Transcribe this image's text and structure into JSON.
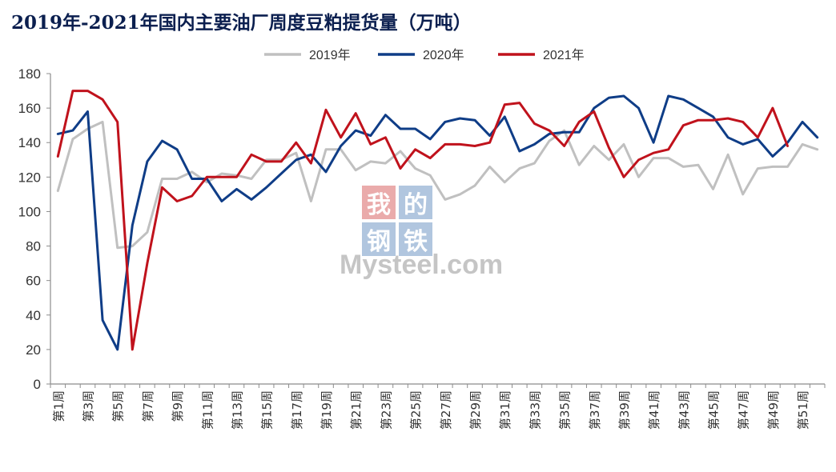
{
  "chart_data": {
    "type": "line",
    "title": "2019年-2021年国内主要油厂周度豆粕提货量（万吨）",
    "ylim": [
      0,
      180
    ],
    "yticks": [
      0,
      20,
      40,
      60,
      80,
      100,
      120,
      140,
      160,
      180
    ],
    "x_tick_labels": [
      "第1周",
      "第3周",
      "第5周",
      "第7周",
      "第9周",
      "第11周",
      "第13周",
      "第15周",
      "第17周",
      "第19周",
      "第21周",
      "第23周",
      "第25周",
      "第27周",
      "第29周",
      "第31周",
      "第33周",
      "第35周",
      "第37周",
      "第39周",
      "第41周",
      "第43周",
      "第45周",
      "第47周",
      "第49周",
      "第51周"
    ],
    "legend_position": "top-center",
    "grid": false,
    "series": [
      {
        "name": "2019年",
        "color": "#c0c0c0",
        "values": [
          112,
          142,
          148,
          152,
          79,
          80,
          88,
          119,
          119,
          123,
          117,
          122,
          121,
          119,
          130,
          130,
          134,
          106,
          136,
          136,
          124,
          129,
          128,
          135,
          125,
          121,
          107,
          110,
          115,
          126,
          117,
          125,
          128,
          141,
          147,
          127,
          138,
          130,
          139,
          120,
          131,
          131,
          126,
          127,
          113,
          133,
          110,
          125,
          126,
          126,
          139,
          136
        ]
      },
      {
        "name": "2020年",
        "color": "#0f3d87",
        "values": [
          145,
          147,
          158,
          37,
          20,
          92,
          129,
          141,
          136,
          119,
          119,
          106,
          113,
          107,
          114,
          122,
          130,
          133,
          123,
          138,
          147,
          144,
          156,
          148,
          148,
          142,
          152,
          154,
          153,
          144,
          155,
          135,
          139,
          145,
          146,
          146,
          160,
          166,
          167,
          160,
          140,
          167,
          165,
          160,
          155,
          143,
          139,
          142,
          132,
          140,
          152,
          143
        ]
      },
      {
        "name": "2021年",
        "color": "#c0121c",
        "values": [
          132,
          170,
          170,
          165,
          152,
          20,
          70,
          114,
          106,
          109,
          120,
          120,
          120,
          133,
          129,
          129,
          140,
          128,
          159,
          143,
          157,
          139,
          143,
          125,
          136,
          131,
          139,
          139,
          138,
          140,
          162,
          163,
          151,
          147,
          138,
          152,
          158,
          137,
          120,
          130,
          134,
          136,
          150,
          153,
          153,
          154,
          152,
          143,
          160,
          138
        ]
      }
    ]
  },
  "watermark": {
    "char_1": "我",
    "char_2": "的",
    "char_3": "钢",
    "char_4": "铁",
    "brand": "Mysteel.com"
  }
}
